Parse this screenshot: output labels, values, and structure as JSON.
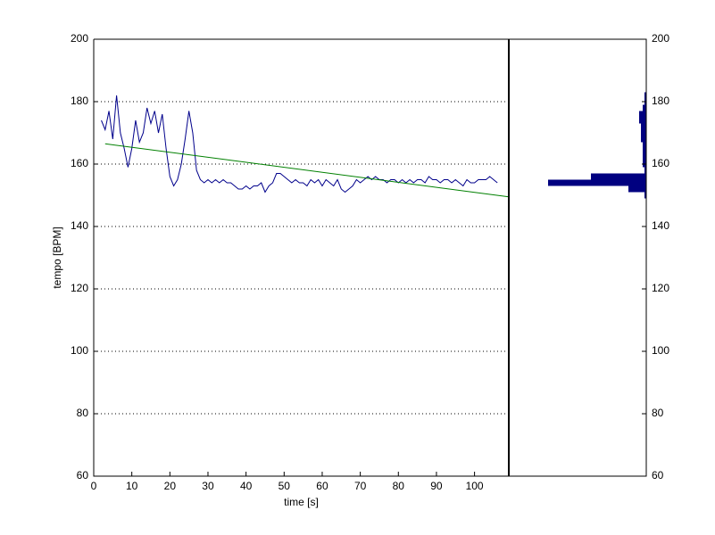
{
  "chart_data": [
    {
      "type": "line",
      "xlabel": "time [s]",
      "ylabel": "tempo [BPM]",
      "xlim": [
        0,
        109
      ],
      "xticks": [
        0,
        10,
        20,
        30,
        40,
        50,
        60,
        70,
        80,
        90,
        100
      ],
      "ylim": [
        60,
        200
      ],
      "yticks": [
        60,
        80,
        100,
        120,
        140,
        160,
        180,
        200
      ],
      "grid": true,
      "series": [
        {
          "color": "#00008b",
          "x": [
            2,
            3,
            4,
            5,
            6,
            7,
            8,
            9,
            10,
            11,
            12,
            13,
            14,
            15,
            16,
            17,
            18,
            19,
            20,
            21,
            22,
            23,
            24,
            25,
            26,
            27,
            28,
            29,
            30,
            31,
            32,
            33,
            34,
            35,
            36,
            37,
            38,
            39,
            40,
            41,
            42,
            43,
            44,
            45,
            46,
            47,
            48,
            49,
            50,
            51,
            52,
            53,
            54,
            55,
            56,
            57,
            58,
            59,
            60,
            61,
            62,
            63,
            64,
            65,
            66,
            67,
            68,
            69,
            70,
            71,
            72,
            73,
            74,
            75,
            76,
            77,
            78,
            79,
            80,
            81,
            82,
            83,
            84,
            85,
            86,
            87,
            88,
            89,
            90,
            91,
            92,
            93,
            94,
            95,
            96,
            97,
            98,
            99,
            100,
            101,
            102,
            103,
            104,
            105,
            106
          ],
          "values": [
            174,
            171,
            177,
            168,
            182,
            170,
            165,
            159,
            165,
            174,
            167,
            170,
            178,
            173,
            177,
            170,
            176,
            165,
            156,
            153,
            155,
            160,
            168,
            177,
            170,
            158,
            155,
            154,
            155,
            154,
            155,
            154,
            155,
            154,
            154,
            153,
            152,
            152,
            153,
            152,
            153,
            153,
            154,
            151,
            153,
            154,
            157,
            157,
            156,
            155,
            154,
            155,
            154,
            154,
            153,
            155,
            154,
            155,
            153,
            155,
            154,
            153,
            155,
            152,
            151,
            152,
            153,
            155,
            154,
            155,
            156,
            155,
            156,
            155,
            155,
            154,
            155,
            155,
            154,
            155,
            154,
            155,
            154,
            155,
            155,
            154,
            156,
            155,
            155,
            154,
            155,
            155,
            154,
            155,
            154,
            153,
            155,
            154,
            154,
            155,
            155,
            155,
            156,
            155,
            154
          ]
        },
        {
          "color": "#008000",
          "x": [
            3,
            109
          ],
          "values": [
            166.5,
            149.5
          ]
        }
      ]
    },
    {
      "type": "histogram",
      "orientation": "horizontal",
      "reversed": true,
      "color": "#000080",
      "xlim": [
        0,
        77
      ],
      "ylim": [
        60,
        200
      ],
      "yticks": [
        60,
        80,
        100,
        120,
        140,
        160,
        180,
        200
      ],
      "bins": [
        149,
        151,
        153,
        155,
        157,
        159,
        161,
        163,
        165,
        167,
        169,
        171,
        173,
        175,
        177,
        179,
        181,
        183
      ],
      "counts": [
        1,
        10,
        55,
        31,
        1,
        2,
        2,
        2,
        2,
        3,
        3,
        3,
        4,
        4,
        2,
        1,
        1
      ]
    }
  ]
}
